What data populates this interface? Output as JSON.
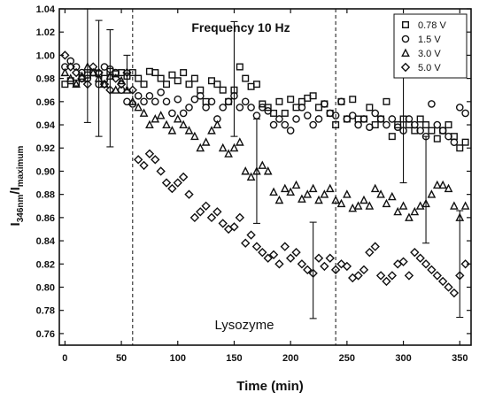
{
  "chart_data": {
    "type": "scatter",
    "title": "",
    "xlabel": "Time (min)",
    "ylabel": {
      "base": "I",
      "sub1": "346nm",
      "mid": "/I",
      "sub2": "maximum"
    },
    "xlim": [
      -5,
      360
    ],
    "ylim": [
      0.75,
      1.04
    ],
    "xticks": [
      0,
      50,
      100,
      150,
      200,
      250,
      300,
      350
    ],
    "yticks": [
      0.76,
      0.78,
      0.8,
      0.82,
      0.84,
      0.86,
      0.88,
      0.9,
      0.92,
      0.94,
      0.96,
      0.98,
      1.0,
      1.02,
      1.04
    ],
    "grid": false,
    "legend_position": "top-right",
    "annotations": {
      "frequency": "Frequency 10 Hz",
      "protein": "Lysozyme"
    },
    "vlines": [
      60,
      240
    ],
    "series": [
      {
        "name": "0.78 V",
        "marker": "square",
        "x": [
          0,
          5,
          10,
          15,
          20,
          25,
          30,
          35,
          40,
          45,
          50,
          55,
          60,
          65,
          70,
          75,
          80,
          85,
          90,
          95,
          100,
          105,
          110,
          115,
          120,
          125,
          130,
          135,
          140,
          145,
          150,
          155,
          160,
          165,
          170,
          175,
          180,
          185,
          190,
          195,
          200,
          205,
          210,
          215,
          220,
          225,
          230,
          235,
          240,
          245,
          250,
          255,
          260,
          265,
          270,
          275,
          280,
          285,
          290,
          295,
          300,
          305,
          310,
          315,
          320,
          325,
          330,
          335,
          340,
          345,
          350,
          355
        ],
        "y": [
          0.975,
          0.978,
          0.976,
          0.98,
          0.983,
          0.985,
          0.984,
          0.98,
          0.986,
          0.984,
          0.985,
          0.982,
          0.985,
          0.98,
          0.975,
          0.986,
          0.985,
          0.98,
          0.975,
          0.983,
          0.978,
          0.985,
          0.975,
          0.98,
          0.97,
          0.96,
          0.978,
          0.975,
          0.97,
          0.96,
          0.97,
          0.99,
          0.98,
          0.973,
          0.975,
          0.958,
          0.955,
          0.95,
          0.96,
          0.95,
          0.962,
          0.955,
          0.96,
          0.963,
          0.965,
          0.955,
          0.958,
          0.95,
          0.94,
          0.96,
          0.945,
          0.962,
          0.945,
          0.945,
          0.955,
          0.94,
          0.945,
          0.96,
          0.93,
          0.94,
          0.945,
          0.94,
          0.935,
          0.945,
          0.94,
          0.935,
          0.928,
          0.935,
          0.94,
          0.93,
          0.92,
          0.925
        ]
      },
      {
        "name": "1.5 V",
        "marker": "circle",
        "x": [
          0,
          5,
          10,
          15,
          20,
          25,
          30,
          35,
          40,
          45,
          50,
          55,
          60,
          65,
          70,
          75,
          80,
          85,
          90,
          95,
          100,
          105,
          110,
          115,
          120,
          125,
          130,
          135,
          140,
          145,
          150,
          155,
          160,
          165,
          170,
          175,
          180,
          185,
          190,
          195,
          200,
          205,
          210,
          215,
          220,
          225,
          230,
          235,
          240,
          245,
          250,
          255,
          260,
          265,
          270,
          275,
          280,
          285,
          290,
          295,
          300,
          305,
          310,
          315,
          320,
          325,
          330,
          335,
          340,
          345,
          350,
          355
        ],
        "y": [
          0.99,
          0.995,
          0.99,
          0.985,
          0.98,
          0.985,
          0.975,
          0.99,
          0.988,
          0.985,
          0.97,
          0.96,
          0.958,
          0.965,
          0.96,
          0.965,
          0.96,
          0.968,
          0.96,
          0.95,
          0.962,
          0.95,
          0.955,
          0.962,
          0.965,
          0.955,
          0.96,
          0.945,
          0.955,
          0.96,
          0.965,
          0.955,
          0.96,
          0.955,
          0.948,
          0.955,
          0.952,
          0.94,
          0.945,
          0.94,
          0.935,
          0.945,
          0.955,
          0.948,
          0.94,
          0.945,
          0.958,
          0.95,
          0.948,
          0.96,
          0.945,
          0.948,
          0.94,
          0.945,
          0.938,
          0.95,
          0.945,
          0.94,
          0.945,
          0.938,
          0.935,
          0.945,
          0.94,
          0.935,
          0.93,
          0.958,
          0.94,
          0.935,
          0.93,
          0.925,
          0.955,
          0.95
        ]
      },
      {
        "name": "3.0 V",
        "marker": "triangle",
        "x": [
          0,
          5,
          10,
          15,
          20,
          25,
          30,
          35,
          40,
          45,
          50,
          55,
          60,
          65,
          70,
          75,
          80,
          85,
          90,
          95,
          100,
          105,
          110,
          115,
          120,
          125,
          130,
          135,
          140,
          145,
          150,
          155,
          160,
          165,
          170,
          175,
          180,
          185,
          190,
          195,
          200,
          205,
          210,
          215,
          220,
          225,
          230,
          235,
          240,
          245,
          250,
          255,
          260,
          265,
          270,
          275,
          280,
          285,
          290,
          295,
          300,
          305,
          310,
          315,
          320,
          325,
          330,
          335,
          340,
          345,
          350,
          355
        ],
        "y": [
          0.985,
          0.98,
          0.975,
          0.982,
          0.99,
          0.985,
          0.98,
          0.975,
          0.982,
          0.97,
          0.978,
          0.97,
          0.96,
          0.955,
          0.95,
          0.94,
          0.945,
          0.948,
          0.94,
          0.935,
          0.945,
          0.94,
          0.935,
          0.93,
          0.92,
          0.925,
          0.935,
          0.94,
          0.92,
          0.915,
          0.92,
          0.925,
          0.9,
          0.895,
          0.9,
          0.905,
          0.9,
          0.882,
          0.875,
          0.885,
          0.882,
          0.888,
          0.876,
          0.88,
          0.885,
          0.875,
          0.88,
          0.885,
          0.875,
          0.872,
          0.88,
          0.868,
          0.87,
          0.875,
          0.87,
          0.885,
          0.88,
          0.872,
          0.878,
          0.865,
          0.87,
          0.86,
          0.865,
          0.87,
          0.872,
          0.88,
          0.888,
          0.888,
          0.885,
          0.87,
          0.86,
          0.87
        ]
      },
      {
        "name": "5.0 V",
        "marker": "diamond",
        "x": [
          0,
          5,
          10,
          15,
          20,
          25,
          30,
          35,
          40,
          45,
          50,
          55,
          60,
          65,
          70,
          75,
          80,
          85,
          90,
          95,
          100,
          105,
          110,
          115,
          120,
          125,
          130,
          135,
          140,
          145,
          150,
          155,
          160,
          165,
          170,
          175,
          180,
          185,
          190,
          195,
          200,
          205,
          210,
          215,
          220,
          225,
          230,
          235,
          240,
          245,
          250,
          255,
          260,
          265,
          270,
          275,
          280,
          285,
          290,
          295,
          300,
          305,
          310,
          315,
          320,
          325,
          330,
          335,
          340,
          345,
          350,
          355
        ],
        "y": [
          1.0,
          0.99,
          0.985,
          0.98,
          0.975,
          0.99,
          0.985,
          0.975,
          0.97,
          0.98,
          0.975,
          0.985,
          0.97,
          0.91,
          0.905,
          0.915,
          0.91,
          0.9,
          0.89,
          0.885,
          0.89,
          0.895,
          0.88,
          0.86,
          0.865,
          0.87,
          0.86,
          0.865,
          0.855,
          0.85,
          0.852,
          0.86,
          0.838,
          0.845,
          0.835,
          0.83,
          0.825,
          0.828,
          0.82,
          0.835,
          0.825,
          0.83,
          0.82,
          0.815,
          0.812,
          0.825,
          0.818,
          0.825,
          0.815,
          0.82,
          0.818,
          0.808,
          0.81,
          0.815,
          0.83,
          0.835,
          0.81,
          0.805,
          0.81,
          0.82,
          0.822,
          0.81,
          0.83,
          0.825,
          0.82,
          0.815,
          0.81,
          0.805,
          0.8,
          0.795,
          0.81,
          0.82
        ]
      }
    ],
    "error_bars": [
      {
        "x": 20,
        "y": 0.99,
        "low": 0.942,
        "high": 1.04
      },
      {
        "x": 30,
        "y": 0.984,
        "low": 0.93,
        "high": 1.03
      },
      {
        "x": 40,
        "y": 0.982,
        "low": 0.921,
        "high": 1.022
      },
      {
        "x": 55,
        "y": 0.985,
        "low": 0.97,
        "high": 1.0
      },
      {
        "x": 150,
        "y": 0.97,
        "low": 0.93,
        "high": 1.029
      },
      {
        "x": 170,
        "y": 0.898,
        "low": 0.855,
        "high": 0.945
      },
      {
        "x": 220,
        "y": 0.815,
        "low": 0.773,
        "high": 0.856
      },
      {
        "x": 300,
        "y": 0.94,
        "low": 0.89,
        "high": 0.985
      },
      {
        "x": 320,
        "y": 0.885,
        "low": 0.838,
        "high": 0.93
      },
      {
        "x": 350,
        "y": 0.82,
        "low": 0.774,
        "high": 0.866
      }
    ]
  }
}
